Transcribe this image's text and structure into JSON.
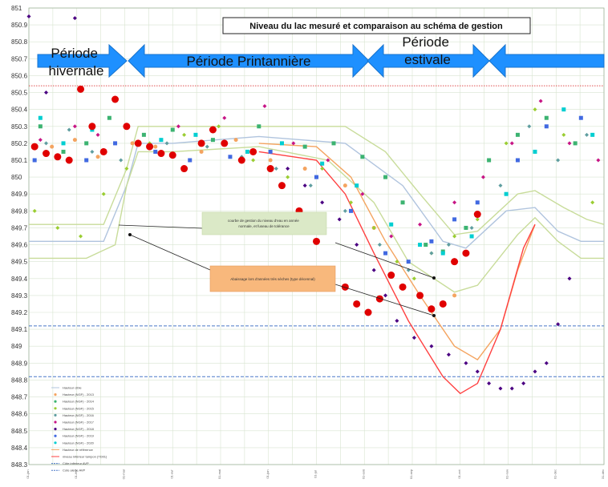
{
  "chart_data": {
    "type": "scatter",
    "title": "Niveau du lac mesuré et comparaison au schéma de gestion",
    "ylim": [
      848.3,
      851.0
    ],
    "y_ticks": [
      "851",
      "850.9",
      "850.8",
      "850.7",
      "850.6",
      "850.5",
      "850.4",
      "850.3",
      "850.2",
      "850.1",
      "850",
      "849.9",
      "849.8",
      "849.7",
      "849.6",
      "849.5",
      "849.4",
      "849.3",
      "849.2",
      "849.1",
      "849",
      "848.9",
      "848.8",
      "848.7",
      "848.6",
      "848.5",
      "848.4",
      "848.3"
    ],
    "x_tick_labels": [
      "01-jan",
      "01-fév",
      "01-mar",
      "01-avr",
      "01-mai",
      "01-jun",
      "01-jul",
      "01-aoû",
      "01-sep",
      "01-oct",
      "01-nov",
      "01-déc",
      "31-déc"
    ],
    "grid": true,
    "periods": [
      {
        "label": "Période hivernale",
        "lines": [
          "Période",
          "hivernale"
        ]
      },
      {
        "label": "Période Printannière",
        "lines": [
          "Période Printannière"
        ]
      },
      {
        "label": "Période estivale",
        "lines": [
          "Période",
          "estivale"
        ]
      },
      {
        "label": "",
        "lines": []
      }
    ],
    "annotations": [
      {
        "lines": [
          "courbe de gestion du niveau d'eau en année",
          "normale, et fuseau de tolérance"
        ]
      },
      {
        "lines": [
          "Abaissage lors d'années très sèches (type décennal)"
        ]
      }
    ],
    "reference_levels": [
      {
        "name": "Cote alerte AVP",
        "y": 850.54,
        "color": "#e05050",
        "dash": "dotted"
      },
      {
        "name": "Côte inférieur AVP",
        "y": 849.12,
        "color": "#4a78c8",
        "dash": "dashed"
      },
      {
        "name": "Cote alerte AVP",
        "y": 848.82,
        "color": "#4a78c8",
        "dash": "dashed"
      }
    ],
    "curves": [
      {
        "name": "Hauteur cible",
        "color": "#b0c4de",
        "x": [
          0,
          0.13,
          0.17,
          0.19,
          0.25,
          0.4,
          0.55,
          0.65,
          0.72,
          0.76,
          0.83,
          0.88,
          0.92,
          0.96,
          1.0
        ],
        "y": [
          849.62,
          849.62,
          849.95,
          850.2,
          850.2,
          850.24,
          850.2,
          849.95,
          849.62,
          849.58,
          849.8,
          849.82,
          849.68,
          849.62,
          849.62
        ]
      },
      {
        "name": "Fuseau supérieur",
        "color": "#c8dc9a",
        "x": [
          0,
          0.13,
          0.17,
          0.19,
          0.25,
          0.4,
          0.55,
          0.62,
          0.68,
          0.74,
          0.78,
          0.85,
          0.88,
          0.93,
          0.97,
          1.0
        ],
        "y": [
          849.72,
          849.72,
          850.05,
          850.3,
          850.3,
          850.3,
          850.3,
          850.15,
          849.9,
          849.66,
          849.68,
          849.9,
          849.92,
          849.82,
          849.75,
          849.72
        ]
      },
      {
        "name": "Fuseau inférieur",
        "color": "#c8dc9a",
        "x": [
          0,
          0.1,
          0.15,
          0.17,
          0.19,
          0.25,
          0.4,
          0.52,
          0.6,
          0.66,
          0.74,
          0.78,
          0.85,
          0.88,
          0.92,
          0.96,
          1.0
        ],
        "y": [
          849.52,
          849.52,
          849.6,
          849.95,
          850.15,
          850.15,
          850.18,
          850.1,
          849.85,
          849.5,
          849.32,
          849.36,
          849.66,
          849.76,
          849.62,
          849.52,
          849.52
        ]
      },
      {
        "name": "Hauteur de référence",
        "color": "#f4a460",
        "x": [
          0.4,
          0.5,
          0.56,
          0.62,
          0.68,
          0.74,
          0.78,
          0.82,
          0.85,
          0.88
        ],
        "y": [
          850.2,
          850.18,
          850.0,
          849.62,
          849.3,
          849.0,
          848.92,
          849.1,
          849.45,
          849.72
        ]
      },
      {
        "name": "niveau inférieur tampon (TD01)",
        "color": "#ff4040",
        "x": [
          0.4,
          0.5,
          0.55,
          0.6,
          0.66,
          0.72,
          0.75,
          0.78,
          0.82,
          0.86,
          0.88
        ],
        "y": [
          850.15,
          850.1,
          849.9,
          849.55,
          849.15,
          848.82,
          848.72,
          848.78,
          849.1,
          849.58,
          849.72
        ]
      }
    ],
    "series": [
      {
        "name": "Hauteur (NGF) - 2013",
        "color": "#f4a460",
        "shape": "circle",
        "size": 2.5,
        "x": [
          0.04,
          0.08,
          0.12,
          0.18,
          0.22,
          0.3,
          0.36,
          0.42,
          0.48,
          0.55,
          0.6,
          0.65,
          0.7,
          0.72,
          0.74
        ],
        "y": [
          850.18,
          850.22,
          850.12,
          850.2,
          850.18,
          850.15,
          850.22,
          850.1,
          850.05,
          849.95,
          849.7,
          849.35,
          849.22,
          849.25,
          849.3
        ]
      },
      {
        "name": "Hauteur (NGF) - 2014",
        "color": "#3cb371",
        "shape": "square",
        "size": 2.5,
        "x": [
          0.02,
          0.06,
          0.1,
          0.14,
          0.2,
          0.25,
          0.32,
          0.4,
          0.48,
          0.53,
          0.58,
          0.62,
          0.65,
          0.69,
          0.72,
          0.76,
          0.8,
          0.85,
          0.9,
          0.95
        ],
        "y": [
          850.3,
          850.15,
          850.2,
          850.35,
          850.25,
          850.28,
          850.22,
          850.3,
          850.18,
          850.2,
          850.12,
          850.0,
          849.85,
          849.6,
          849.56,
          849.7,
          850.1,
          850.25,
          850.35,
          850.2
        ]
      },
      {
        "name": "Hauteur (NGF) - 2015",
        "color": "#9acd32",
        "shape": "diamond",
        "size": 2.5,
        "x": [
          0.01,
          0.05,
          0.09,
          0.13,
          0.17,
          0.21,
          0.27,
          0.33,
          0.39,
          0.45,
          0.51,
          0.56,
          0.6,
          0.64,
          0.67,
          0.7,
          0.74,
          0.78,
          0.83,
          0.88,
          0.93,
          0.98
        ],
        "y": [
          849.8,
          849.7,
          849.65,
          849.9,
          850.05,
          850.2,
          850.25,
          850.3,
          850.1,
          850.0,
          850.05,
          849.85,
          849.7,
          849.5,
          849.4,
          849.55,
          849.65,
          849.75,
          850.2,
          850.4,
          850.25,
          849.85
        ]
      },
      {
        "name": "Hauteur (NGF) - 2016",
        "color": "#5f9ea0",
        "shape": "diamond",
        "size": 2.5,
        "x": [
          0.03,
          0.07,
          0.11,
          0.16,
          0.24,
          0.31,
          0.37,
          0.43,
          0.49,
          0.55,
          0.61,
          0.66,
          0.7,
          0.73,
          0.77,
          0.82,
          0.87,
          0.92,
          0.97
        ],
        "y": [
          850.2,
          850.28,
          850.15,
          850.1,
          850.2,
          850.18,
          850.12,
          850.05,
          849.95,
          849.8,
          849.6,
          849.45,
          849.55,
          849.6,
          849.7,
          849.95,
          850.3,
          850.1,
          850.25
        ]
      },
      {
        "name": "Hauteur (NGF) - 2017",
        "color": "#c71585",
        "shape": "diamond",
        "size": 2.5,
        "x": [
          0.02,
          0.08,
          0.12,
          0.19,
          0.26,
          0.34,
          0.41,
          0.46,
          0.52,
          0.58,
          0.63,
          0.68,
          0.74,
          0.79,
          0.84,
          0.89,
          0.94,
          0.99
        ],
        "y": [
          850.22,
          850.3,
          850.25,
          850.2,
          850.3,
          850.35,
          850.42,
          850.2,
          850.1,
          849.9,
          849.65,
          849.72,
          849.85,
          850.0,
          850.2,
          850.45,
          850.2,
          850.1
        ]
      },
      {
        "name": "Hauteur (NGF) - 2018",
        "color": "#4b0082",
        "shape": "diamond",
        "size": 2.5,
        "x": [
          0.0,
          0.03,
          0.08,
          0.45,
          0.48,
          0.51,
          0.54,
          0.57,
          0.6,
          0.62,
          0.64,
          0.67,
          0.7,
          0.73,
          0.76,
          0.78,
          0.8,
          0.82,
          0.84,
          0.86,
          0.88,
          0.9,
          0.92,
          0.94
        ],
        "y": [
          850.95,
          850.5,
          850.94,
          850.05,
          849.95,
          849.85,
          849.75,
          849.6,
          849.45,
          849.3,
          849.15,
          849.05,
          849.0,
          848.95,
          848.9,
          848.85,
          848.78,
          848.75,
          848.75,
          848.78,
          848.85,
          848.9,
          849.13,
          849.4
        ]
      },
      {
        "name": "Hauteur (NGF) - 2019",
        "color": "#4169e1",
        "shape": "square",
        "size": 2.5,
        "x": [
          0.01,
          0.05,
          0.1,
          0.15,
          0.22,
          0.28,
          0.35,
          0.42,
          0.5,
          0.56,
          0.62,
          0.66,
          0.7,
          0.74,
          0.78,
          0.85,
          0.9,
          0.96
        ],
        "y": [
          850.1,
          850.12,
          850.1,
          850.2,
          850.15,
          850.1,
          850.12,
          850.15,
          850.0,
          849.8,
          849.55,
          849.5,
          849.62,
          849.75,
          849.85,
          850.1,
          850.3,
          850.35
        ]
      },
      {
        "name": "Hauteur (NGF) - 2020",
        "color": "#00ced1",
        "shape": "square",
        "size": 2.5,
        "x": [
          0.02,
          0.06,
          0.11,
          0.17,
          0.23,
          0.29,
          0.38,
          0.44,
          0.51,
          0.57,
          0.63,
          0.68,
          0.72,
          0.77,
          0.83,
          0.88,
          0.93,
          0.98
        ],
        "y": [
          850.35,
          850.2,
          850.28,
          850.3,
          850.22,
          850.25,
          850.15,
          850.2,
          850.08,
          849.95,
          849.72,
          849.6,
          849.55,
          849.65,
          849.9,
          850.15,
          850.4,
          850.25
        ]
      },
      {
        "name": "Hauteur (NGF) - 2022",
        "color": "#e00000",
        "shape": "circle",
        "size": 4.5,
        "x": [
          0.01,
          0.03,
          0.05,
          0.07,
          0.09,
          0.11,
          0.13,
          0.15,
          0.17,
          0.19,
          0.21,
          0.23,
          0.25,
          0.27,
          0.3,
          0.32,
          0.34,
          0.37,
          0.39,
          0.42,
          0.44,
          0.47,
          0.5,
          0.52,
          0.55,
          0.57,
          0.59,
          0.61,
          0.63,
          0.65,
          0.68,
          0.7,
          0.72,
          0.74,
          0.76,
          0.78
        ],
        "y": [
          850.18,
          850.14,
          850.12,
          850.1,
          850.52,
          850.3,
          850.15,
          850.46,
          850.3,
          850.2,
          850.18,
          850.14,
          850.13,
          850.05,
          850.2,
          850.28,
          850.2,
          850.1,
          850.15,
          850.05,
          849.95,
          849.8,
          849.62,
          849.45,
          849.35,
          849.25,
          849.2,
          849.28,
          849.42,
          849.35,
          849.3,
          849.22,
          849.25,
          849.5,
          849.55,
          849.78
        ]
      }
    ],
    "legend": [
      "Hauteur cible",
      "Hauteur (NGF) - 2013",
      "Hauteur (NGF) - 2014",
      "Hauteur (NGF) - 2015",
      "Hauteur (NGF) - 2016",
      "Hauteur (NGF) - 2017",
      "Hauteur (NGF) - 2018",
      "Hauteur (NGF) - 2019",
      "Hauteur (NGF) - 2020",
      "Hauteur de référence",
      "niveau inférieur tampon (TD01)",
      "Côte inférieur AVP",
      "Cote alerte AVP"
    ]
  }
}
